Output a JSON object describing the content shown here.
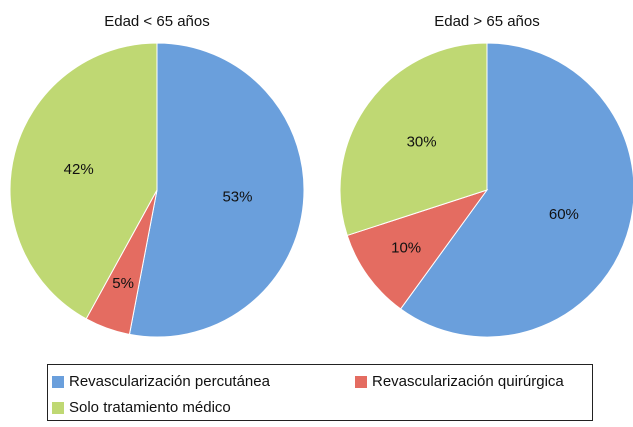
{
  "chart_data": [
    {
      "type": "pie",
      "title": "Edad < 65 años",
      "categories": [
        "Revascularización percutánea",
        "Revascularización quirúrgica",
        "Solo tratamiento médico"
      ],
      "values": [
        53,
        5,
        42
      ],
      "value_labels": [
        "53%",
        "5%",
        "42%"
      ],
      "colors": [
        "#6a9fdc",
        "#e46c61",
        "#bfd873"
      ]
    },
    {
      "type": "pie",
      "title": "Edad > 65 años",
      "categories": [
        "Revascularización percutánea",
        "Revascularización quirúrgica",
        "Solo tratamiento médico"
      ],
      "values": [
        60,
        10,
        30
      ],
      "value_labels": [
        "60%",
        "10%",
        "30%"
      ],
      "colors": [
        "#6a9fdc",
        "#e46c61",
        "#bfd873"
      ]
    }
  ]
}
